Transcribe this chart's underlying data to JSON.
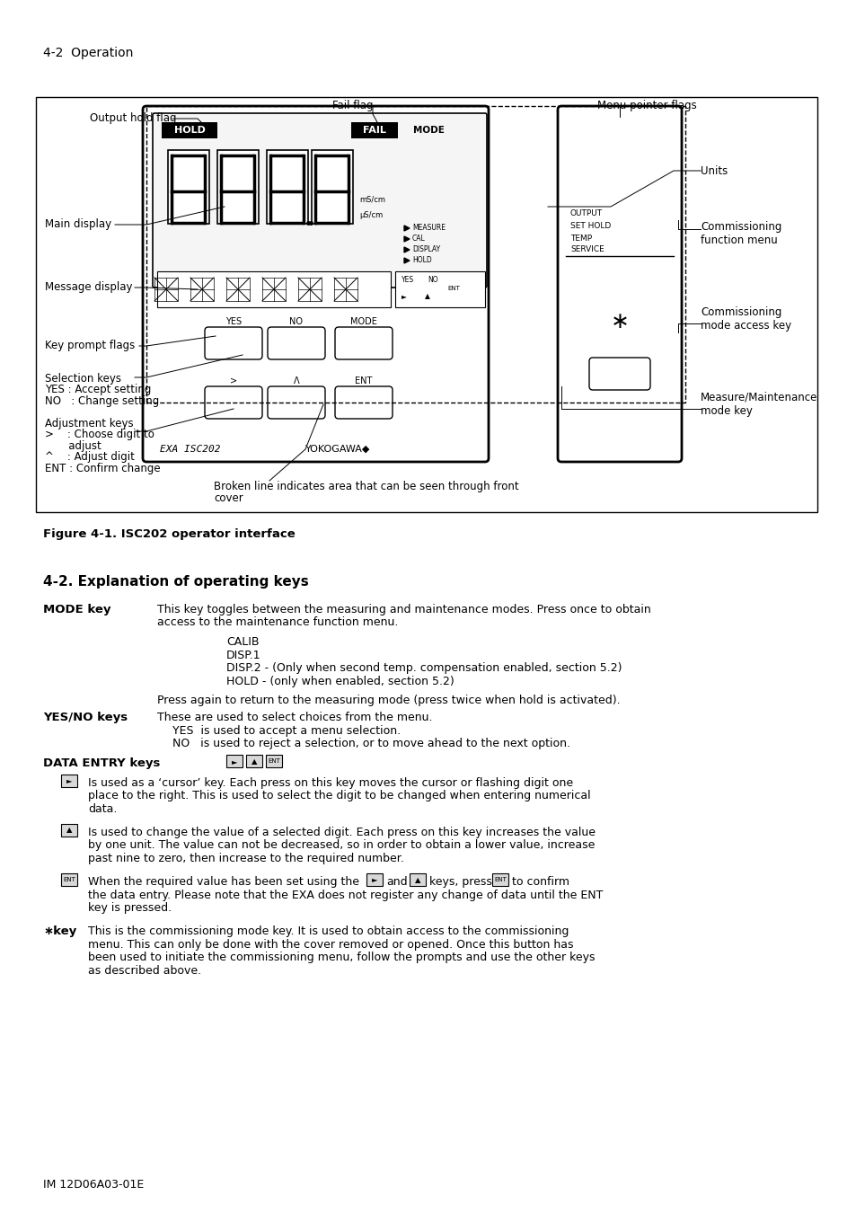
{
  "page_header": "4-2  Operation",
  "figure_caption": "Figure 4-1. ISC202 operator interface",
  "section_title": "4-2. Explanation of operating keys",
  "footer": "IM 12D06A03-01E",
  "bg": "white"
}
